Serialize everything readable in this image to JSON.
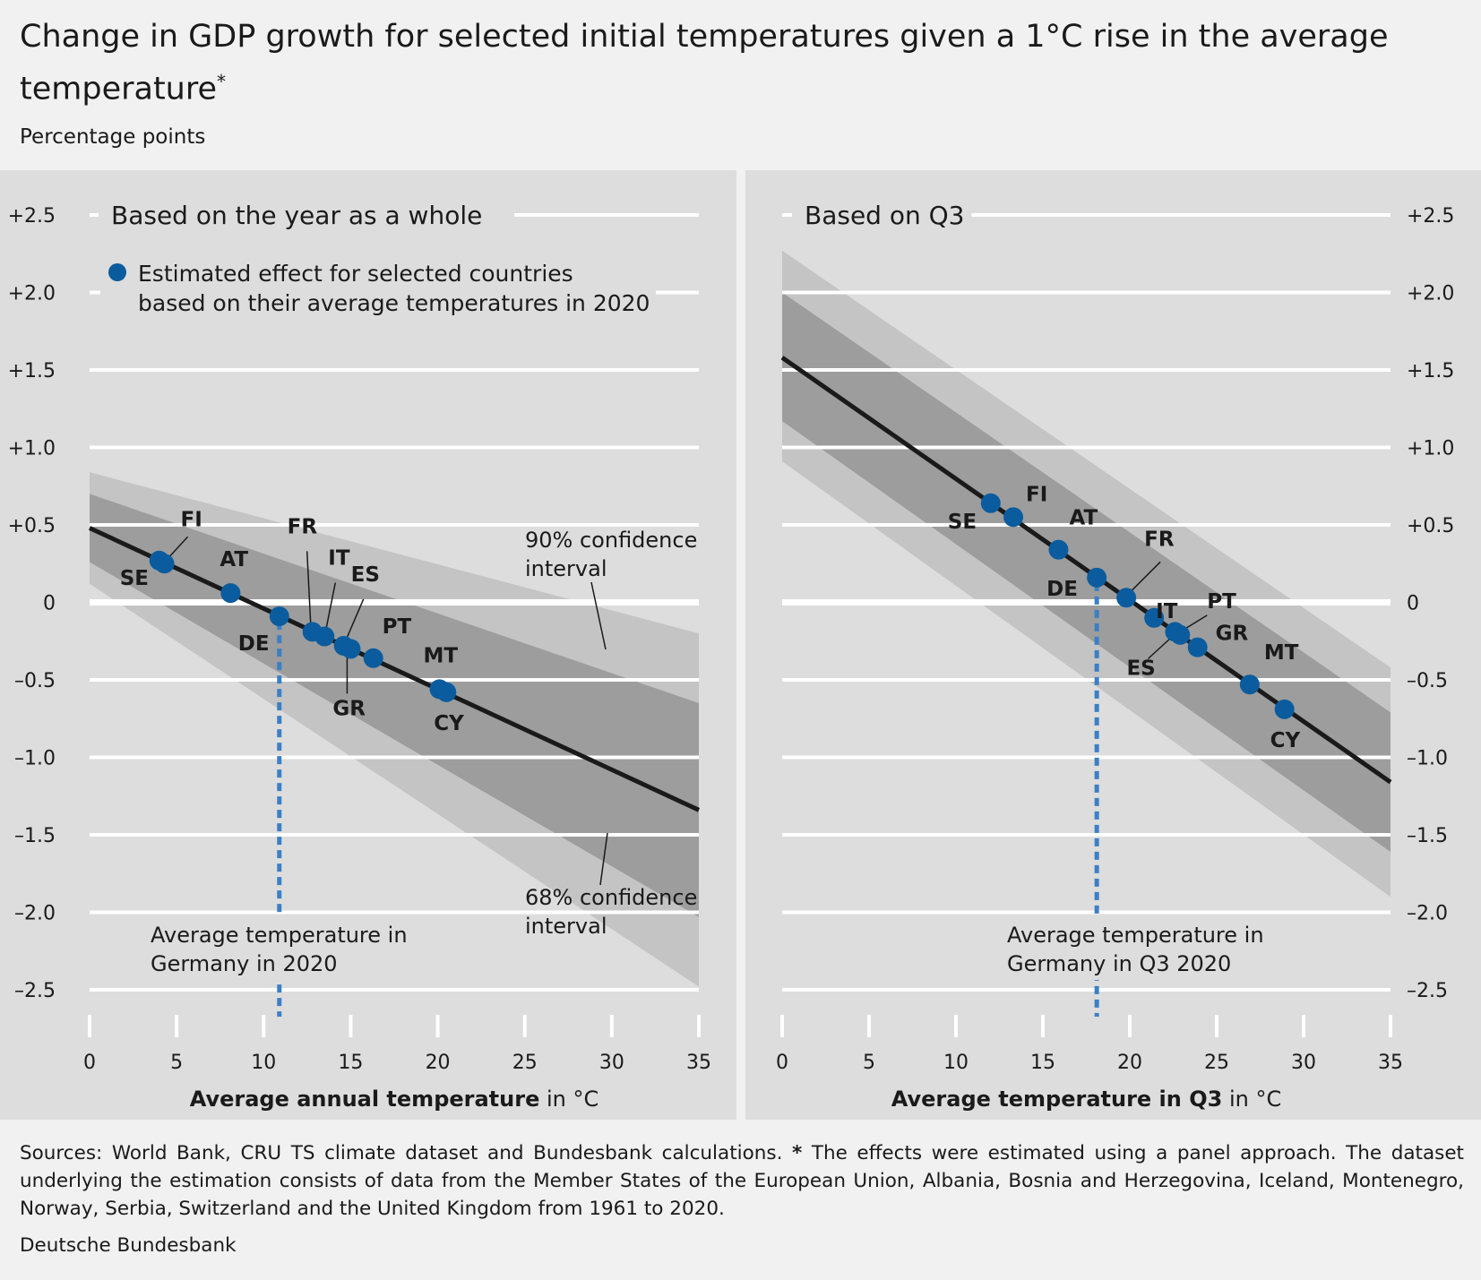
{
  "title": "Change in GDP growth for selected initial temperatures given a 1°C rise in the average temperature",
  "title_marker": "*",
  "subtitle": "Percentage points",
  "footnote_sources": "Sources: World Bank, CRU TS climate dataset and Bundesbank calculations.",
  "footnote_marker": "*",
  "footnote_text": "The effects were estimated using a panel approach. The dataset underlying the estimation consists of data from the Member States of the European Union, Albania, Bosnia and Herzegovina, Iceland, Montenegro, Norway, Serbia, Switzerland and the United Kingdom from 1961 to 2020.",
  "publisher": "Deutsche Bundesbank",
  "colors": {
    "panel_bg": "#dddddd",
    "ci90": "#c4c4c4",
    "ci68": "#9d9d9d",
    "line": "#1a1a1a",
    "point": "#0b5c9e",
    "germany_line": "#3b7fc4",
    "grid": "#ffffff"
  },
  "chart_data": [
    {
      "type": "line",
      "panel_title": "Based on the year as a whole",
      "xlabel_bold": "Average annual temperature",
      "xlabel_unit": "in °C",
      "xlim": [
        0,
        35
      ],
      "ylim": [
        -2.5,
        2.5
      ],
      "x_ticks": [
        "0",
        "5",
        "10",
        "15",
        "20",
        "25",
        "30",
        "35"
      ],
      "y_ticks": [
        "+2.5",
        "+2.0",
        "+1.5",
        "+1.0",
        "+0.5",
        "0",
        "–0.5",
        "–1.0",
        "–1.5",
        "–2.0",
        "–2.5"
      ],
      "y_axis_side": "left",
      "grid": true,
      "legend_text": [
        "Estimated effect for selected countries",
        "based on their average temperatures in 2020"
      ],
      "legend_position": "top-left",
      "fit_line": {
        "x": [
          0,
          35
        ],
        "y": [
          0.48,
          -1.34
        ]
      },
      "ci68": {
        "x": [
          0,
          35
        ],
        "upper": [
          0.7,
          -0.65
        ],
        "lower": [
          0.26,
          -2.03
        ]
      },
      "ci90": {
        "x": [
          0,
          35
        ],
        "upper": [
          0.84,
          -0.2
        ],
        "lower": [
          0.12,
          -2.48
        ]
      },
      "points": [
        {
          "label": "SE",
          "x": 4.0,
          "y": 0.27
        },
        {
          "label": "FI",
          "x": 4.3,
          "y": 0.25
        },
        {
          "label": "AT",
          "x": 8.1,
          "y": 0.06
        },
        {
          "label": "DE",
          "x": 10.9,
          "y": -0.09
        },
        {
          "label": "FR",
          "x": 12.8,
          "y": -0.19
        },
        {
          "label": "IT",
          "x": 13.5,
          "y": -0.22
        },
        {
          "label": "ES",
          "x": 14.6,
          "y": -0.28
        },
        {
          "label": "GR",
          "x": 15.0,
          "y": -0.3
        },
        {
          "label": "PT",
          "x": 16.3,
          "y": -0.36
        },
        {
          "label": "MT",
          "x": 20.1,
          "y": -0.56
        },
        {
          "label": "CY",
          "x": 20.5,
          "y": -0.58
        }
      ],
      "germany_x": 10.9,
      "annotations": {
        "germany": [
          "Average temperature in",
          "Germany in 2020"
        ],
        "ci90": [
          "90% confidence",
          "interval"
        ],
        "ci68": [
          "68% confidence",
          "interval"
        ]
      }
    },
    {
      "type": "line",
      "panel_title": "Based on Q3",
      "xlabel_bold": "Average temperature in Q3",
      "xlabel_unit": "in °C",
      "xlim": [
        0,
        35
      ],
      "ylim": [
        -2.5,
        2.5
      ],
      "x_ticks": [
        "0",
        "5",
        "10",
        "15",
        "20",
        "25",
        "30",
        "35"
      ],
      "y_ticks": [
        "+2.5",
        "+2.0",
        "+1.5",
        "+1.0",
        "+0.5",
        "0",
        "–0.5",
        "–1.0",
        "–1.5",
        "–2.0",
        "–2.5"
      ],
      "y_axis_side": "right",
      "grid": true,
      "fit_line": {
        "x": [
          0,
          35
        ],
        "y": [
          1.58,
          -1.16
        ]
      },
      "ci68": {
        "x": [
          0,
          35
        ],
        "upper": [
          2.0,
          -0.71
        ],
        "lower": [
          1.17,
          -1.61
        ]
      },
      "ci90": {
        "x": [
          0,
          35
        ],
        "upper": [
          2.27,
          -0.42
        ],
        "lower": [
          0.91,
          -1.9
        ]
      },
      "points": [
        {
          "label": "SE",
          "x": 12.0,
          "y": 0.64
        },
        {
          "label": "FI",
          "x": 13.3,
          "y": 0.55
        },
        {
          "label": "AT",
          "x": 15.9,
          "y": 0.34
        },
        {
          "label": "DE",
          "x": 18.1,
          "y": 0.16
        },
        {
          "label": "FR",
          "x": 19.8,
          "y": 0.03
        },
        {
          "label": "IT",
          "x": 21.4,
          "y": -0.1
        },
        {
          "label": "ES",
          "x": 22.6,
          "y": -0.19
        },
        {
          "label": "PT",
          "x": 22.9,
          "y": -0.21
        },
        {
          "label": "GR",
          "x": 23.9,
          "y": -0.29
        },
        {
          "label": "MT",
          "x": 26.9,
          "y": -0.53
        },
        {
          "label": "CY",
          "x": 28.9,
          "y": -0.69
        }
      ],
      "germany_x": 18.1,
      "annotations": {
        "germany": [
          "Average temperature in",
          "Germany in Q3 2020"
        ]
      }
    }
  ]
}
